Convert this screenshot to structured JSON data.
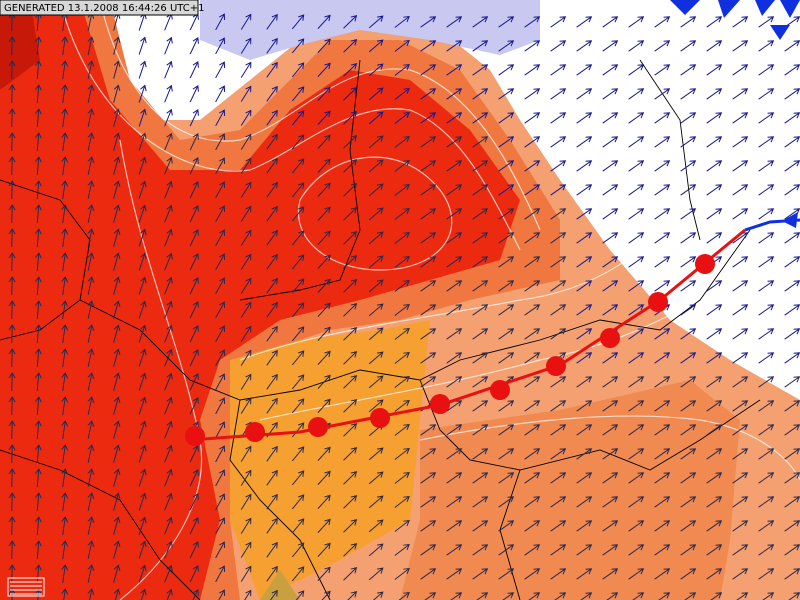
{
  "header": {
    "generated": "GENERATED 13.1.2008 16:44:26 UTC+1"
  }
}
